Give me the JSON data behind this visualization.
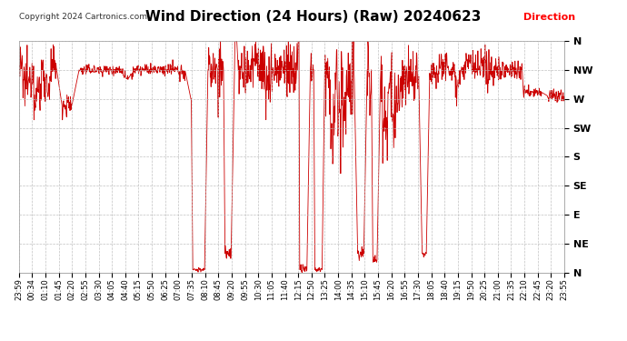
{
  "title": "Wind Direction (24 Hours) (Raw) 20240623",
  "copyright": "Copyright 2024 Cartronics.com",
  "legend_label": "Direction",
  "legend_color": "#ff0000",
  "background_color": "#ffffff",
  "line_color": "#cc0000",
  "grid_color": "#bbbbbb",
  "title_fontsize": 11,
  "ylabel_ticks": [
    "N",
    "NW",
    "W",
    "SW",
    "S",
    "SE",
    "E",
    "NE",
    "N"
  ],
  "ylabel_values": [
    360,
    315,
    270,
    225,
    180,
    135,
    90,
    45,
    0
  ],
  "ylim": [
    0,
    360
  ],
  "x_tick_labels": [
    "23:59",
    "00:34",
    "01:10",
    "01:45",
    "02:20",
    "02:55",
    "03:30",
    "04:05",
    "04:40",
    "05:15",
    "05:50",
    "06:25",
    "07:00",
    "07:35",
    "08:10",
    "08:45",
    "09:20",
    "09:55",
    "10:30",
    "11:05",
    "11:40",
    "12:15",
    "12:50",
    "13:25",
    "14:00",
    "14:35",
    "15:10",
    "15:45",
    "16:20",
    "16:55",
    "17:30",
    "18:05",
    "18:40",
    "19:15",
    "19:50",
    "20:25",
    "21:00",
    "21:35",
    "22:10",
    "22:45",
    "23:20",
    "23:55"
  ]
}
